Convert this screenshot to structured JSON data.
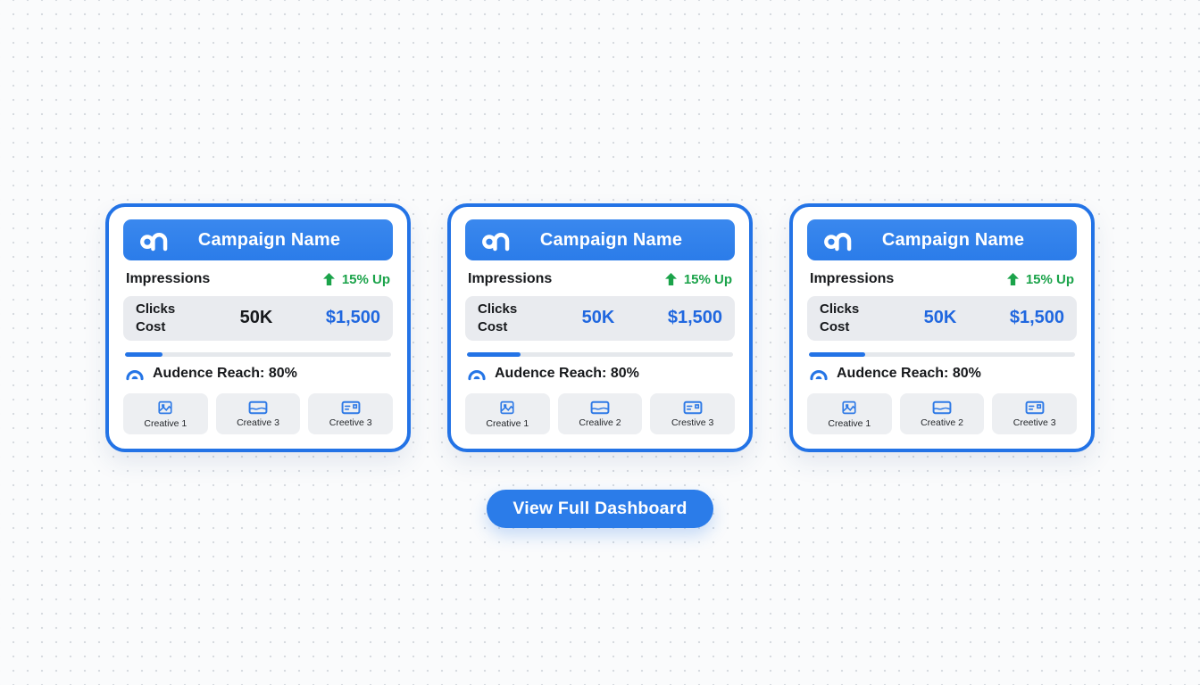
{
  "colors": {
    "primary_blue": "#2b7ce9",
    "border_blue": "#2373e6",
    "value_blue": "#2067df",
    "green": "#1ba34a",
    "dark_text": "#17191c"
  },
  "cards": [
    {
      "title": "Campaign Name",
      "impressions_label": "Impressions",
      "trend_label": "15% Up",
      "clicks_label": "Clicks",
      "cost_label": "Cost",
      "clicks_value": "50K",
      "clicks_value_color": "#17191c",
      "cost_value": "$1,500",
      "progress_percent": 14,
      "reach_label": "Audence Reach: 80%",
      "creatives": [
        {
          "label": "Creative 1"
        },
        {
          "label": "Creative 3"
        },
        {
          "label": "Creetive 3"
        }
      ]
    },
    {
      "title": "Campaign Name",
      "impressions_label": "Impressions",
      "trend_label": "15% Up",
      "clicks_label": "Clicks",
      "cost_label": "Cost",
      "clicks_value": "50K",
      "clicks_value_color": "#2067df",
      "cost_value": "$1,500",
      "progress_percent": 20,
      "reach_label": "Audence Reach: 80%",
      "creatives": [
        {
          "label": "Creative 1"
        },
        {
          "label": "Crealive 2"
        },
        {
          "label": "Crestive 3"
        }
      ]
    },
    {
      "title": "Campaign Name",
      "impressions_label": "Impressions",
      "trend_label": "15% Up",
      "clicks_label": "Clicks",
      "cost_label": "Cost",
      "clicks_value": "50K",
      "clicks_value_color": "#2067df",
      "cost_value": "$1,500",
      "progress_percent": 21,
      "reach_label": "Audence Reach: 80%",
      "creatives": [
        {
          "label": "Creative 1"
        },
        {
          "label": "Creative 2"
        },
        {
          "label": "Creetive 3"
        }
      ]
    }
  ],
  "footer": {
    "button_label": "View Full Dashboard"
  }
}
